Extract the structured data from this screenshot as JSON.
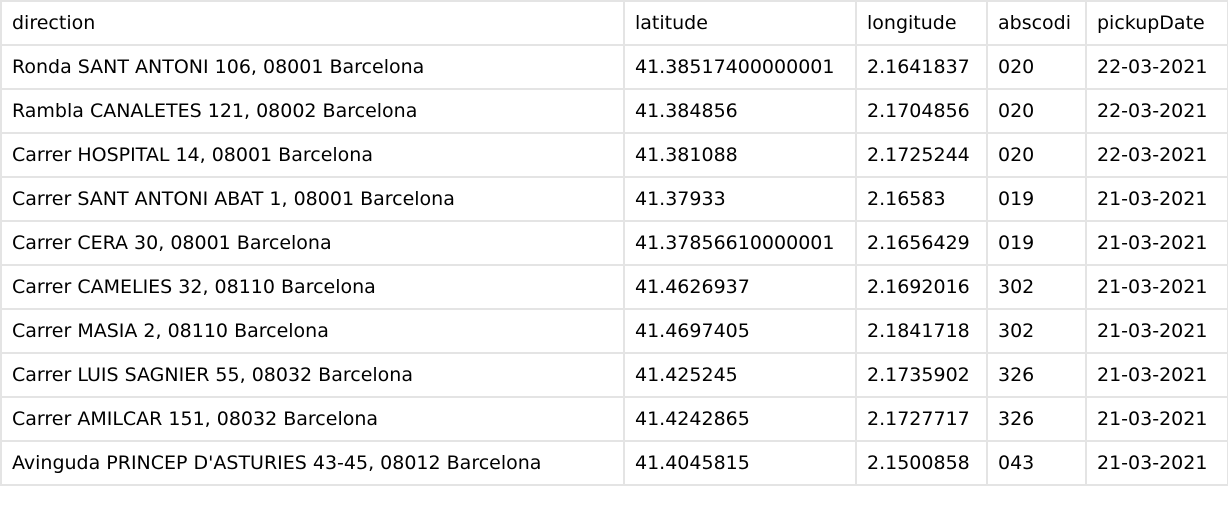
{
  "table": {
    "headers": [
      "direction",
      "latitude",
      "longitude",
      "abscodi",
      "pickupDate"
    ],
    "rows": [
      [
        "Ronda SANT ANTONI 106, 08001 Barcelona",
        "41.38517400000001",
        "2.1641837",
        "020",
        "22-03-2021"
      ],
      [
        "Rambla CANALETES 121, 08002 Barcelona",
        "41.384856",
        "2.1704856",
        "020",
        "22-03-2021"
      ],
      [
        "Carrer HOSPITAL 14, 08001 Barcelona",
        "41.381088",
        "2.1725244",
        "020",
        "22-03-2021"
      ],
      [
        "Carrer SANT ANTONI ABAT 1, 08001 Barcelona",
        "41.37933",
        "2.16583",
        "019",
        "21-03-2021"
      ],
      [
        "Carrer CERA 30, 08001 Barcelona",
        "41.37856610000001",
        "2.1656429",
        "019",
        "21-03-2021"
      ],
      [
        "Carrer CAMELIES 32, 08110 Barcelona",
        "41.4626937",
        "2.1692016",
        "302",
        "21-03-2021"
      ],
      [
        "Carrer MASIA 2, 08110 Barcelona",
        "41.4697405",
        "2.1841718",
        "302",
        "21-03-2021"
      ],
      [
        "Carrer LUIS SAGNIER 55, 08032 Barcelona",
        "41.425245",
        "2.1735902",
        "326",
        "21-03-2021"
      ],
      [
        "Carrer AMILCAR 151, 08032 Barcelona",
        "41.4242865",
        "2.1727717",
        "326",
        "21-03-2021"
      ],
      [
        "Avinguda PRINCEP D'ASTURIES 43-45, 08012 Barcelona",
        "41.4045815",
        "2.1500858",
        "043",
        "21-03-2021"
      ]
    ]
  }
}
